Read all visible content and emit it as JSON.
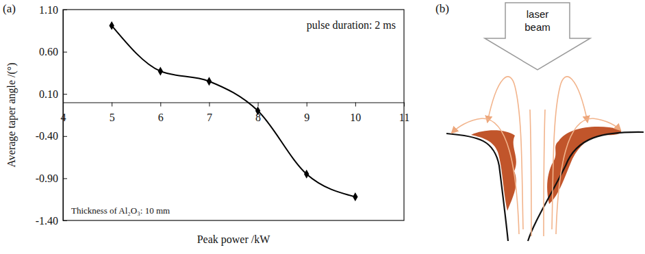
{
  "chart_data": {
    "type": "line",
    "panel_label": "(a)",
    "x_label": "Peak power /kW",
    "y_label": "Average taper angle /(°)",
    "annotations": [
      "pulse duration: 2 ms",
      "Thickness of Al₂O₃: 10 mm"
    ],
    "x": [
      5,
      6,
      7,
      8,
      9,
      10
    ],
    "values": [
      0.91,
      0.37,
      0.25,
      -0.1,
      -0.85,
      -1.12
    ],
    "color": "#000000",
    "marker": "diamond",
    "xlim": [
      4,
      11
    ],
    "xticks": [
      4,
      5,
      6,
      7,
      8,
      9,
      10,
      11
    ],
    "ylim": [
      -1.4,
      1.1
    ],
    "yticks": [
      {
        "value": -1.4,
        "label": "-1.40"
      },
      {
        "value": -0.9,
        "label": "-0.90"
      },
      {
        "value": -0.4,
        "label": "-0.40"
      },
      {
        "value": 0.1,
        "label": "0.10"
      },
      {
        "value": 0.6,
        "label": "0.60"
      },
      {
        "value": 1.1,
        "label": "1.10"
      }
    ],
    "grid": false
  },
  "diagram": {
    "panel_label": "(b)",
    "beam_label": "laser beam"
  }
}
